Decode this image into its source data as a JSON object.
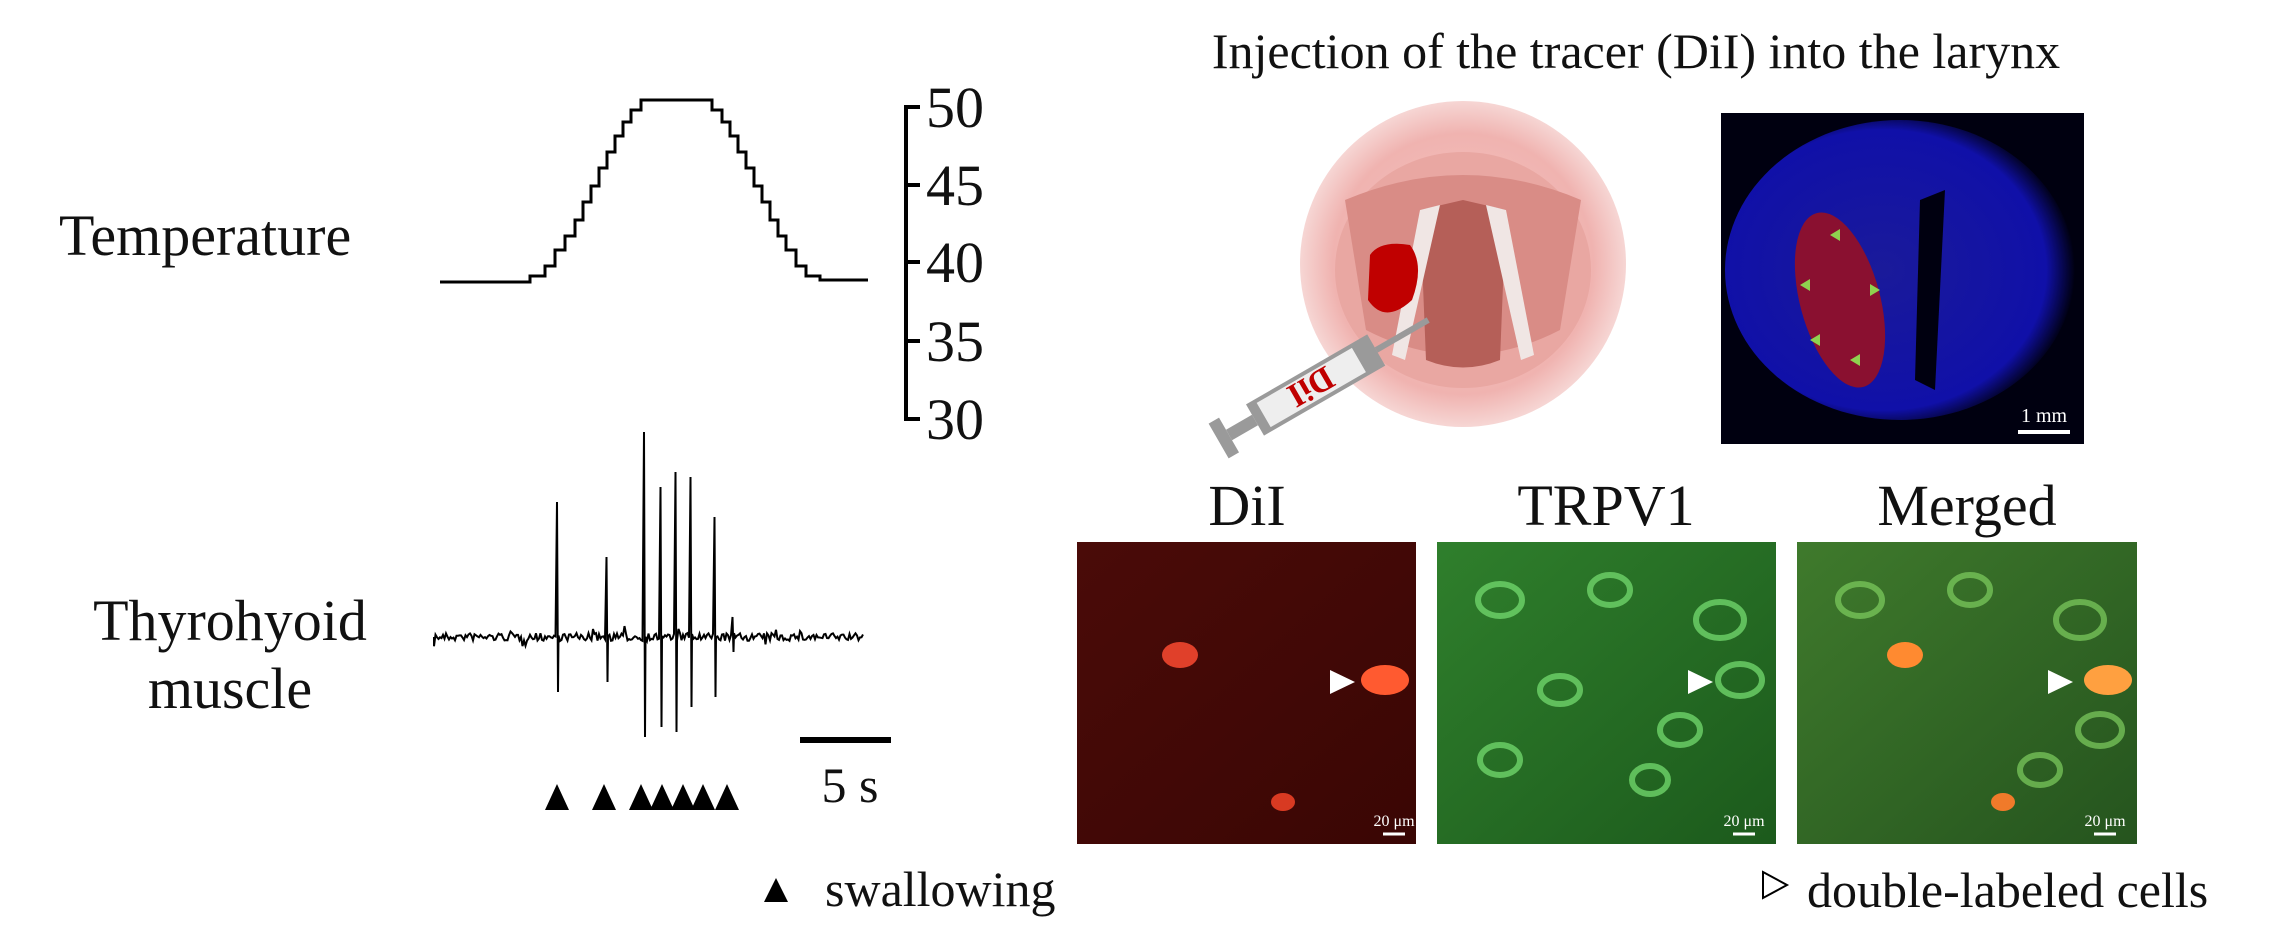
{
  "left_panel": {
    "temperature_label": "Temperature",
    "temperature_axis_ticks": [
      "50",
      "45",
      "40",
      "35",
      "30"
    ],
    "emg_label_line1": "Thyrohyoid",
    "emg_label_line2": "muscle",
    "time_scale": "5 s",
    "legend": "swallowing"
  },
  "right_panel": {
    "title": "Injection of the tracer (DiI) into the larynx",
    "syringe_label": "DiI",
    "section_scale": "1 mm",
    "panels": [
      {
        "label": "DiI",
        "scale": "20 μm"
      },
      {
        "label": "TRPV1",
        "scale": "20 μm"
      },
      {
        "label": "Merged",
        "scale": "20 μm"
      }
    ],
    "legend": "double-labeled cells"
  }
}
